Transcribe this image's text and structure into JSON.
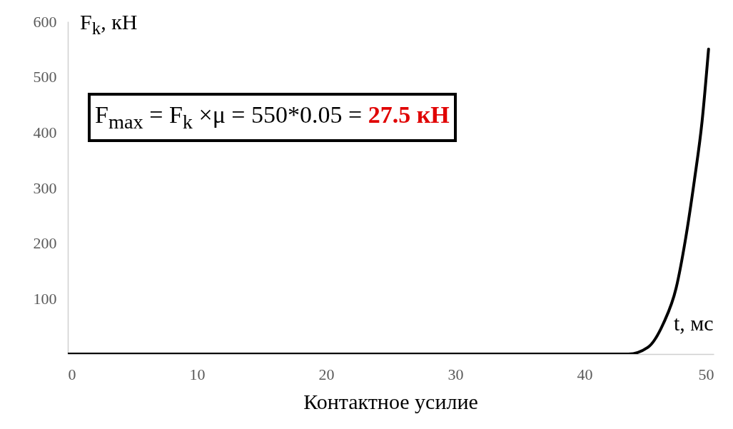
{
  "chart_data": {
    "type": "line",
    "title": "Контактное усилие",
    "xlabel": "t, мс",
    "ylabel": "F$_{k}$, кН",
    "annotations": [
      "F$_{max}$ = F$_{k}$ ×μ = 550*0.05 = 27.5 кН"
    ],
    "x": [
      0,
      43.4,
      44.9,
      46.1,
      47.1,
      47.8,
      48.5,
      49.1,
      49.6
    ],
    "series": [
      {
        "color": "#000000",
        "values": [
          0,
          0,
          12,
          55,
          120,
          205,
          313,
          420,
          550
        ]
      }
    ],
    "xlim": [
      0,
      50
    ],
    "xticks": [
      0,
      10,
      20,
      30,
      40,
      50
    ],
    "ylim": [
      0,
      600
    ],
    "yticks": [
      100,
      200,
      300,
      400,
      500,
      600
    ],
    "grid": false
  }
}
